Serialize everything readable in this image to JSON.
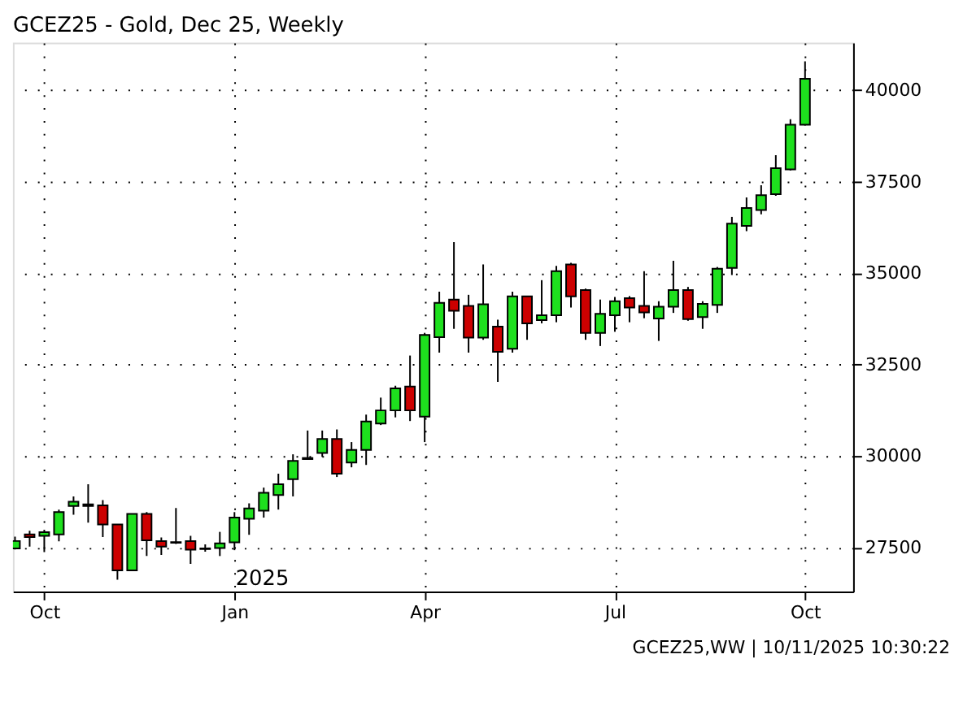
{
  "chart_data": {
    "type": "candlestick",
    "title": "GCEZ25 - Gold, Dec 25, Weekly",
    "annotations": [
      "2025",
      "GCEZ25,WW | 10/11/2025 10:30:22"
    ],
    "x": [
      "2024-09-23",
      "2024-09-30",
      "2024-10-07",
      "2024-10-14",
      "2024-10-21",
      "2024-10-28",
      "2024-11-04",
      "2024-11-11",
      "2024-11-18",
      "2024-11-25",
      "2024-12-02",
      "2024-12-09",
      "2024-12-16",
      "2024-12-23",
      "2024-12-30",
      "2025-01-06",
      "2025-01-13",
      "2025-01-20",
      "2025-01-27",
      "2025-02-03",
      "2025-02-10",
      "2025-02-17",
      "2025-02-24",
      "2025-03-03",
      "2025-03-10",
      "2025-03-17",
      "2025-03-24",
      "2025-03-31",
      "2025-04-07",
      "2025-04-14",
      "2025-04-21",
      "2025-04-28",
      "2025-05-05",
      "2025-05-12",
      "2025-05-19",
      "2025-05-26",
      "2025-06-02",
      "2025-06-09",
      "2025-06-16",
      "2025-06-23",
      "2025-06-30",
      "2025-07-07",
      "2025-07-14",
      "2025-07-21",
      "2025-07-28",
      "2025-08-04",
      "2025-08-11",
      "2025-08-18",
      "2025-08-25",
      "2025-09-01",
      "2025-09-08",
      "2025-09-15",
      "2025-09-22",
      "2025-09-29",
      "2025-10-06"
    ],
    "ohlc": [
      [
        27480,
        27800,
        27450,
        27680
      ],
      [
        27860,
        27960,
        27530,
        27790
      ],
      [
        27820,
        27990,
        27380,
        27920
      ],
      [
        27860,
        28540,
        27670,
        28470
      ],
      [
        28640,
        28900,
        28400,
        28755
      ],
      [
        28680,
        29230,
        28180,
        28640
      ],
      [
        28655,
        28800,
        27790,
        28135
      ],
      [
        28135,
        28135,
        26620,
        26880
      ],
      [
        26880,
        28420,
        26880,
        28420
      ],
      [
        28420,
        28470,
        27270,
        27700
      ],
      [
        27675,
        27775,
        27300,
        27530
      ],
      [
        27630,
        28580,
        27600,
        27650
      ],
      [
        27675,
        27820,
        27055,
        27445
      ],
      [
        27460,
        27590,
        27390,
        27480
      ],
      [
        27490,
        27930,
        27270,
        27615
      ],
      [
        27645,
        28470,
        27430,
        28320
      ],
      [
        28290,
        28710,
        27850,
        28570
      ],
      [
        28510,
        29140,
        28320,
        29000
      ],
      [
        28940,
        29520,
        28540,
        29230
      ],
      [
        29370,
        30050,
        28900,
        29870
      ],
      [
        29920,
        30700,
        29910,
        29950
      ],
      [
        30085,
        30700,
        29980,
        30470
      ],
      [
        30470,
        30730,
        29430,
        29520
      ],
      [
        29825,
        30385,
        29695,
        30170
      ],
      [
        30170,
        31135,
        29760,
        30950
      ],
      [
        30890,
        31600,
        30850,
        31250
      ],
      [
        31250,
        31925,
        31060,
        31855
      ],
      [
        31900,
        32750,
        30960,
        31250
      ],
      [
        31080,
        33370,
        30385,
        33310
      ],
      [
        33250,
        34495,
        32830,
        34190
      ],
      [
        34280,
        35850,
        33480,
        33975
      ],
      [
        34105,
        34410,
        32830,
        33240
      ],
      [
        33240,
        35240,
        33180,
        34150
      ],
      [
        33540,
        33730,
        32030,
        32850
      ],
      [
        32935,
        34495,
        32830,
        34365
      ],
      [
        34365,
        34365,
        33180,
        33630
      ],
      [
        33720,
        34810,
        33630,
        33850
      ],
      [
        33850,
        35200,
        33660,
        35055
      ],
      [
        35240,
        35285,
        34060,
        34365
      ],
      [
        34540,
        34580,
        33180,
        33370
      ],
      [
        33370,
        34280,
        33010,
        33890
      ],
      [
        33850,
        34350,
        33400,
        34235
      ],
      [
        34320,
        34375,
        33660,
        34060
      ],
      [
        34105,
        35055,
        33770,
        33930
      ],
      [
        33760,
        34235,
        33150,
        34085
      ],
      [
        34085,
        35340,
        33915,
        34540
      ],
      [
        34540,
        34625,
        33700,
        33745
      ],
      [
        33800,
        34235,
        33480,
        34160
      ],
      [
        34135,
        35170,
        33915,
        35125
      ],
      [
        35145,
        36540,
        34950,
        36355
      ],
      [
        36295,
        37070,
        36150,
        36785
      ],
      [
        36725,
        37405,
        36610,
        37130
      ],
      [
        37160,
        38225,
        37115,
        37870
      ],
      [
        37840,
        39210,
        37810,
        39060
      ],
      [
        39060,
        40790,
        39035,
        40315
      ]
    ],
    "colors": [
      "#1ee01e",
      "#cc0000",
      "#1ee01e",
      "#1ee01e",
      "#1ee01e",
      "#cc0000",
      "#cc0000",
      "#cc0000",
      "#1ee01e",
      "#cc0000",
      "#cc0000",
      "#1ee01e",
      "#cc0000",
      "#1ee01e",
      "#1ee01e",
      "#1ee01e",
      "#1ee01e",
      "#1ee01e",
      "#1ee01e",
      "#1ee01e",
      "#1ee01e",
      "#1ee01e",
      "#cc0000",
      "#1ee01e",
      "#1ee01e",
      "#1ee01e",
      "#1ee01e",
      "#cc0000",
      "#1ee01e",
      "#1ee01e",
      "#cc0000",
      "#cc0000",
      "#1ee01e",
      "#cc0000",
      "#1ee01e",
      "#cc0000",
      "#1ee01e",
      "#1ee01e",
      "#cc0000",
      "#cc0000",
      "#1ee01e",
      "#1ee01e",
      "#cc0000",
      "#cc0000",
      "#1ee01e",
      "#1ee01e",
      "#cc0000",
      "#1ee01e",
      "#1ee01e",
      "#1ee01e",
      "#1ee01e",
      "#1ee01e",
      "#1ee01e",
      "#1ee01e",
      "#1ee01e"
    ],
    "xlim": [
      "2024-09-22",
      "2025-10-29"
    ],
    "xticks": [
      {
        "value": "2024-10-07",
        "label": "Oct"
      },
      {
        "value": "2025-01-06",
        "label": "Jan"
      },
      {
        "value": "2025-04-07",
        "label": "Apr"
      },
      {
        "value": "2025-07-07",
        "label": "Jul"
      },
      {
        "value": "2025-10-06",
        "label": "Oct"
      }
    ],
    "ylim": [
      26300,
      41300
    ],
    "yticks": [
      27500,
      30000,
      32500,
      35000,
      37500,
      40000
    ],
    "grid": true
  }
}
